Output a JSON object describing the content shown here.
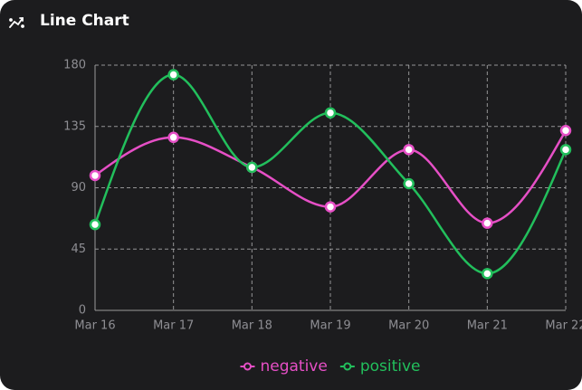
{
  "chart_data": {
    "type": "line",
    "title": "Line Chart",
    "categories": [
      "Mar 16",
      "Mar 17",
      "Mar 18",
      "Mar 19",
      "Mar 20",
      "Mar 21",
      "Mar 22"
    ],
    "series": [
      {
        "name": "negative",
        "color": "#e64fc6",
        "values": [
          99,
          127,
          105,
          76,
          118,
          64,
          132
        ]
      },
      {
        "name": "positive",
        "color": "#22bf5c",
        "values": [
          63,
          173,
          105,
          145,
          93,
          27,
          118
        ]
      }
    ],
    "ylim": [
      0,
      180
    ],
    "yticks": [
      0,
      45,
      90,
      135,
      180
    ],
    "grid": true,
    "legend": "bottom"
  }
}
